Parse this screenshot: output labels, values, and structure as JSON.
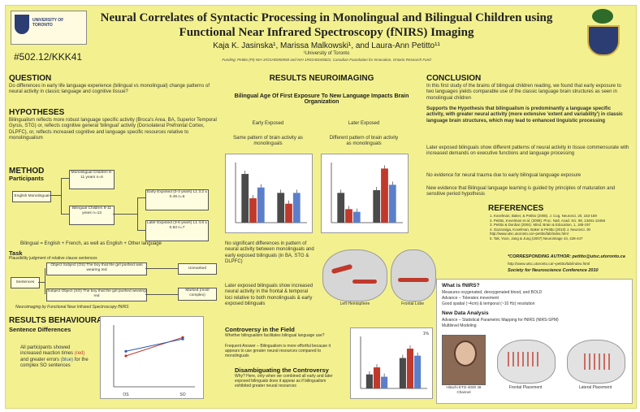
{
  "header": {
    "logo_left_text": "UNIVERSITY OF TORONTO",
    "title_line1": "Neural Correlates of Syntactic Processing in Monolingual and Bilingual Children using",
    "title_line2": "Functional Near Infrared Spectroscopy (fNIRS) Imaging",
    "authors": "Kaja K. Jasinska¹, Marissa Malkowski¹, and Laura-Ann Petitto¹¹",
    "affiliation": "¹University of Toronto",
    "funding": "Funding: Petitto (PI) NIH 1R21HD050558 and NIH 1R01HD045822, Canadian Foundation for Innovation, Ontario Research Fund",
    "poster_id": "#502.12/KKK41"
  },
  "question": {
    "heading": "QUESTION",
    "text": "Do differences in early life language experience (bilingual vs monolingual) change patterns of neural activity in classic language and cognitive tissue?"
  },
  "hypotheses": {
    "heading": "HYPOTHESES",
    "text": "Bilingualism reflects more robust language specific activity (Broca's Area, BA, Superior Temporal Gyrus, STG) or, reflects cognitive general 'bilingual' activity (Dorsolateral Prefrontal Cortex, DLPFC), or, reflects increased cognitive and language specific resources relative to monolingualism"
  },
  "method": {
    "heading": "METHOD",
    "participants_label": "Participants",
    "english_box": "English Monolingual",
    "mono_box": "Monolingual Children 8-11 years n=8",
    "bi_box": "Bilingual Children 8-11 years n=13",
    "early_box": "Early Exposed (0-3 years) L1 3.2 ± 0.49 n=6",
    "later_box": "Later Exposed (3-6 years) L1 4.6 ± 0.83 n=7",
    "bilingual_def": "Bilingual = English + French, as well as English + Other language",
    "task_label": "Task",
    "task_desc": "Plausibility judgment of relative clause sentences",
    "sentences_box": "Sentences",
    "obj_box": "Object Subject (OS) The boy that the girl pushed was wearing red",
    "subj_box": "Subject Object (SO) The boy that the girl pushed wearing red",
    "unmarked_box": "Unmarked",
    "marked_box": "Marked (most complex)",
    "fnirs_caption": "Neuroimaging by Functional Near Infrared Spectroscopy fNIRS"
  },
  "behavioural": {
    "heading": "RESULTS BEHAVIOURAL",
    "sub": "Sentence Differences",
    "text_pre": "All participants showed increased reaction times",
    "text_red": "(red)",
    "text_mid": "and greater errors",
    "text_blue": "(blue)",
    "text_post": "for the complex SO sentences"
  },
  "neuro": {
    "heading": "RESULTS NEUROIMAGING",
    "subheading": "Bilingual Age Of First Exposure To New Language Impacts Brain Organization",
    "early_label": "Early Exposed",
    "early_desc": "Same pattern of brain activity as monolinguals",
    "later_label": "Later Exposed",
    "later_desc": "Different pattern of brain activity as monolinguals",
    "no_diff": "No significant differences in pattern of neural activity between monolinguals and early exposed bilinguals (in BA, STG & DLPFC)",
    "later_diff": "Later exposed bilinguals show increased neural activity in the frontal & temporal loci relative to both monolinguals & early exposed bilinguals",
    "left_hemi": "Left Hemisphere",
    "frontal_lobe": "Frontal Lobe",
    "controversy_heading": "Controversy in the Field",
    "controversy_q": "Whether bilingualism facilitates bilingual language use?",
    "controversy_a": "Frequent Answer – Bilingualism is more effortful because it appears to use greater neural resources compared to monolinguals",
    "disambig_heading": "Disambiguating the Controversy",
    "disambig_text": "Why? Here, only when we combined all early and later exposed bilinguals does it appear as if bilingualism exhibited greater neural resources",
    "chart_marker": "1%"
  },
  "conclusion": {
    "heading": "CONCLUSION",
    "p1": "In this first study of the brains of bilingual children reading, we found that early exposure to two languages yields comparable use of the classic language brain structures as seen in monolingual children",
    "p2": "Supports the Hypothesis that bilingualism is predominantly a language specific activity, with greater neural activity (more extensive 'extent and variability') in classic language brain structures, which may lead to enhanced linguistic processing",
    "p3": "Later exposed bilinguals show different patterns of neural activity in tissue commensurate with increased demands on executive functions and language processing",
    "p4": "No evidence for neural trauma due to early bilingual language exposure",
    "p5": "New evidence that Bilingual language learning is guided by principles of maturation and sensitive period hypothesis"
  },
  "references": {
    "heading": "REFERENCES",
    "items": [
      "1. Kovelman, Baker, & Petitto (2008). J. Cog. Neurosci. 20, 153-169",
      "2. Petitto, Kovelman et al. (2009). Proc. Natl. Acad. Sci. 99, 13461-13466",
      "3. Petitto & Dunbar (2004). Mind, Brain & Education, 1, 185-197",
      "4. Gazzaniga, Kovelman, Baker & Petitto (2010) J. Neurosci. 30",
      "   http://www.utsc.utoronto.ca/~petitto/lab/index.html",
      "5. Tak, Yoon, Jang & Jung (2007) Neuroimage 44, 428-447"
    ],
    "corresponding": "*CORRESPONDING AUTHOR: petitto@utsc.utoronto.ca",
    "url": "http://www.utsc.utoronto.ca/~petitto/lab/index.html",
    "society": "Society for Neuroscience Conference 2010"
  },
  "fnirs_box": {
    "heading": "What is fNIRS?",
    "l1": "Measures oxygenated, deoxygenated blood, and BOLD",
    "l2": "Advance – Tolerates movement",
    "l3": "Good spatial (~4cm) & temporal (~10 Hz) resolution",
    "analysis_heading": "New Data Analysis",
    "analysis_l1": "Advance – Statistical Parametric Mapping for fNIRS (NIRS-SPM)",
    "analysis_l2": "Multilevel Modeling",
    "photo1": "Hitachi ETG-4000 46 Channel",
    "photo2": "Frontal Placement",
    "photo3": "Lateral Placement"
  },
  "chart_data": [
    {
      "type": "line",
      "title": "",
      "categories": [
        "OS",
        "SO"
      ],
      "series": [
        {
          "name": "",
          "color": "#c0392b",
          "values": [
            1.0,
            1.6
          ]
        },
        {
          "name": "",
          "color": "#2a59b5",
          "values": [
            1.15,
            1.55
          ]
        }
      ]
    },
    {
      "type": "bar",
      "title": "Early Exposed",
      "groups": 2,
      "series": [
        {
          "name": "",
          "color": "#4a4a4a",
          "values": [
            0.9,
            0.55
          ]
        },
        {
          "name": "",
          "color": "#c0392b",
          "values": [
            0.45,
            0.35
          ]
        },
        {
          "name": "",
          "color": "#5b7fc9",
          "values": [
            0.65,
            0.55
          ]
        }
      ]
    },
    {
      "type": "bar",
      "title": "Later Exposed",
      "groups": 2,
      "series": [
        {
          "name": "",
          "color": "#4a4a4a",
          "values": [
            0.55,
            0.6
          ]
        },
        {
          "name": "",
          "color": "#c0392b",
          "values": [
            0.25,
            1.0
          ]
        },
        {
          "name": "",
          "color": "#5b7fc9",
          "values": [
            0.2,
            0.7
          ]
        }
      ]
    },
    {
      "type": "bar",
      "title": "",
      "groups": 2,
      "series": [
        {
          "name": "",
          "color": "#4a4a4a",
          "values": [
            0.3,
            0.65
          ]
        },
        {
          "name": "",
          "color": "#c0392b",
          "values": [
            0.45,
            0.85
          ]
        },
        {
          "name": "",
          "color": "#5b7fc9",
          "values": [
            0.25,
            0.7
          ]
        }
      ]
    }
  ]
}
